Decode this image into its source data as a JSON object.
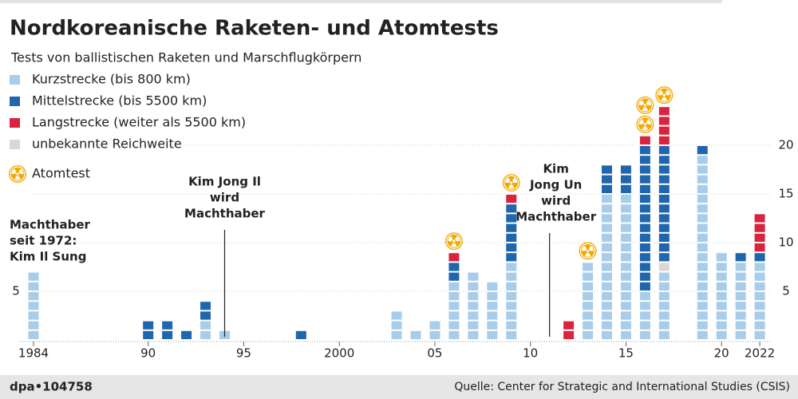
{
  "chart_data": {
    "type": "stacked-unit-bar",
    "title": "Nordkoreanische Raketen- und Atomtests",
    "subtitle": "Tests von ballistischen Raketen und Marschflugkörpern",
    "x": [
      1984,
      1985,
      1986,
      1987,
      1988,
      1989,
      1990,
      1991,
      1992,
      1993,
      1994,
      1995,
      1996,
      1997,
      1998,
      1999,
      2000,
      2001,
      2002,
      2003,
      2004,
      2005,
      2006,
      2007,
      2008,
      2009,
      2010,
      2011,
      2012,
      2013,
      2014,
      2015,
      2016,
      2017,
      2018,
      2019,
      2020,
      2021,
      2022
    ],
    "series": [
      {
        "name": "Kurzstrecke (bis 800 km)",
        "color": "#a8cdea",
        "values": [
          7,
          0,
          0,
          0,
          0,
          0,
          0,
          0,
          0,
          2,
          1,
          0,
          0,
          0,
          0,
          0,
          0,
          0,
          0,
          3,
          1,
          2,
          6,
          7,
          6,
          8,
          0,
          0,
          0,
          8,
          15,
          15,
          5,
          7,
          0,
          19,
          9,
          8,
          8
        ]
      },
      {
        "name": "Mittelstrecke (bis 5500 km)",
        "color": "#1f66ad",
        "values": [
          0,
          0,
          0,
          0,
          0,
          0,
          2,
          2,
          1,
          2,
          0,
          0,
          0,
          0,
          1,
          0,
          0,
          0,
          0,
          0,
          0,
          0,
          2,
          0,
          0,
          6,
          0,
          0,
          0,
          0,
          3,
          3,
          15,
          12,
          0,
          1,
          0,
          1,
          1
        ]
      },
      {
        "name": "Langstrecke (weiter als 5500 km)",
        "color": "#d9233f",
        "values": [
          0,
          0,
          0,
          0,
          0,
          0,
          0,
          0,
          0,
          0,
          0,
          0,
          0,
          0,
          0,
          0,
          0,
          0,
          0,
          0,
          0,
          0,
          1,
          0,
          0,
          1,
          0,
          0,
          2,
          0,
          0,
          0,
          1,
          4,
          0,
          0,
          0,
          0,
          4
        ]
      },
      {
        "name": "unbekannte Reichweite",
        "color": "#d9d8d3",
        "values": [
          0,
          0,
          0,
          0,
          0,
          0,
          0,
          0,
          0,
          0,
          0,
          0,
          0,
          0,
          0,
          0,
          0,
          0,
          0,
          0,
          0,
          0,
          0,
          0,
          0,
          0,
          0,
          0,
          0,
          0,
          0,
          0,
          0,
          1,
          0,
          0,
          0,
          0,
          0
        ]
      }
    ],
    "nuclear": {
      "name": "Atomtest",
      "color": "#f2a900",
      "values": [
        0,
        0,
        0,
        0,
        0,
        0,
        0,
        0,
        0,
        0,
        0,
        0,
        0,
        0,
        0,
        0,
        0,
        0,
        0,
        0,
        0,
        0,
        1,
        0,
        0,
        1,
        0,
        0,
        0,
        1,
        0,
        0,
        2,
        1,
        0,
        0,
        0,
        0,
        0
      ]
    },
    "xticks": [
      1984,
      {
        "value": 1990,
        "label": "90"
      },
      {
        "value": 1995,
        "label": "95"
      },
      2000,
      {
        "value": 2005,
        "label": "05"
      },
      {
        "value": 2010,
        "label": "10"
      },
      {
        "value": 2015,
        "label": "15"
      },
      {
        "value": 2020,
        "label": "20"
      },
      2022
    ],
    "ylim": [
      0,
      25
    ],
    "yticks": [
      5,
      10,
      15,
      20
    ],
    "grid": true,
    "annotations": [
      {
        "lines": [
          "Machthaber",
          "seit 1972:",
          "Kim Il Sung"
        ]
      },
      {
        "x": 1994,
        "lines": [
          "Kim Jong Il",
          "wird",
          "Machthaber"
        ]
      },
      {
        "x": 2011,
        "lines": [
          "Kim",
          "Jong Un",
          "wird",
          "Machthaber"
        ]
      }
    ],
    "credit": "dpa•104758",
    "source": "Quelle: Center for Strategic and International Studies (CSIS)"
  }
}
